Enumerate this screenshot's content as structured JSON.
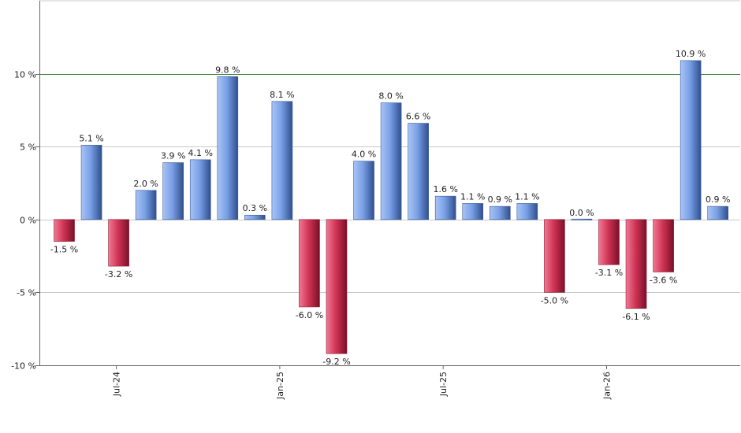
{
  "chart_data": {
    "type": "bar",
    "title": "",
    "xlabel": "",
    "ylabel": "",
    "ylim": [
      -10,
      15
    ],
    "yticks": [
      -10,
      -5,
      0,
      5,
      10
    ],
    "ytick_labels": [
      "-10 %",
      "-5 %",
      "0 %",
      "5 %",
      "10 %"
    ],
    "reference_line": {
      "value": 10,
      "color": "#2e7d32"
    },
    "grid": true,
    "value_suffix": " %",
    "positive_color": "#6f97dc",
    "negative_color": "#c8284a",
    "xtick_labels": [
      {
        "label": "Jul-24",
        "index": 2
      },
      {
        "label": "Jan-25",
        "index": 8
      },
      {
        "label": "Jul-25",
        "index": 14
      },
      {
        "label": "Jan-26",
        "index": 20
      }
    ],
    "values": [
      -1.5,
      5.1,
      -3.2,
      2.0,
      3.9,
      4.1,
      9.8,
      0.3,
      8.1,
      -6.0,
      -9.2,
      4.0,
      8.0,
      6.6,
      1.6,
      1.1,
      0.9,
      1.1,
      -5.0,
      0.0,
      -3.1,
      -6.1,
      -3.6,
      10.9,
      0.9
    ],
    "labels": [
      "-1.5 %",
      "5.1 %",
      "-3.2 %",
      "2.0 %",
      "3.9 %",
      "4.1 %",
      "9.8 %",
      "0.3 %",
      "8.1 %",
      "-6.0 %",
      "-9.2 %",
      "4.0 %",
      "8.0 %",
      "6.6 %",
      "1.6 %",
      "1.1 %",
      "0.9 %",
      "1.1 %",
      "-5.0 %",
      "0.0 %",
      "-3.1 %",
      "-6.1 %",
      "-3.6 %",
      "10.9 %",
      "0.9 %"
    ]
  }
}
